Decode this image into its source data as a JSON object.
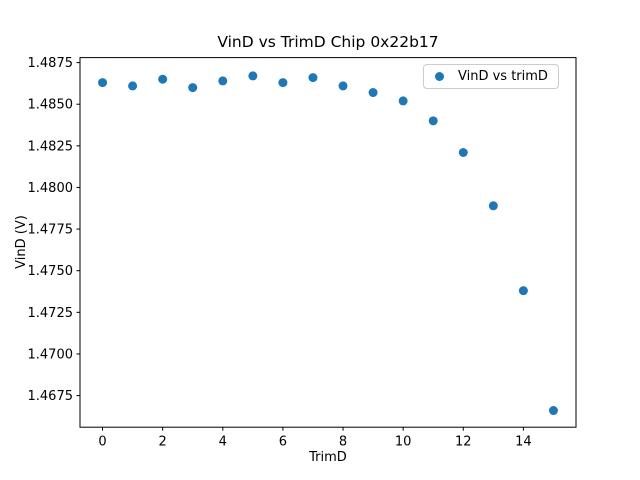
{
  "chart_data": {
    "type": "scatter",
    "title": "VinD vs TrimD Chip 0x22b17",
    "xlabel": "TrimD",
    "ylabel": "VinD (V)",
    "legend": {
      "label": "VinD vs trimD",
      "position": "upper right"
    },
    "series": [
      {
        "name": "VinD vs trimD",
        "x": [
          0,
          1,
          2,
          3,
          4,
          5,
          6,
          7,
          8,
          9,
          10,
          11,
          12,
          13,
          14,
          15
        ],
        "y": [
          1.4863,
          1.4861,
          1.4865,
          1.486,
          1.4864,
          1.4867,
          1.4863,
          1.4866,
          1.4861,
          1.4857,
          1.4852,
          1.484,
          1.4821,
          1.4789,
          1.4738,
          1.4666
        ]
      }
    ],
    "xlim": [
      -0.75,
      15.75
    ],
    "ylim": [
      1.4656,
      1.4878
    ],
    "x_ticks": [
      0,
      2,
      4,
      6,
      8,
      10,
      12,
      14
    ],
    "x_tick_labels": [
      "0",
      "2",
      "4",
      "6",
      "8",
      "10",
      "12",
      "14"
    ],
    "y_ticks": [
      1.4675,
      1.47,
      1.4725,
      1.475,
      1.4775,
      1.48,
      1.4825,
      1.485,
      1.4875
    ],
    "y_tick_labels": [
      "1.4675",
      "1.4700",
      "1.4725",
      "1.4750",
      "1.4775",
      "1.4800",
      "1.4825",
      "1.4850",
      "1.4875"
    ],
    "grid": false,
    "marker_color": "#1f77b4",
    "axes_color": "#000000",
    "background_color": "#ffffff"
  }
}
